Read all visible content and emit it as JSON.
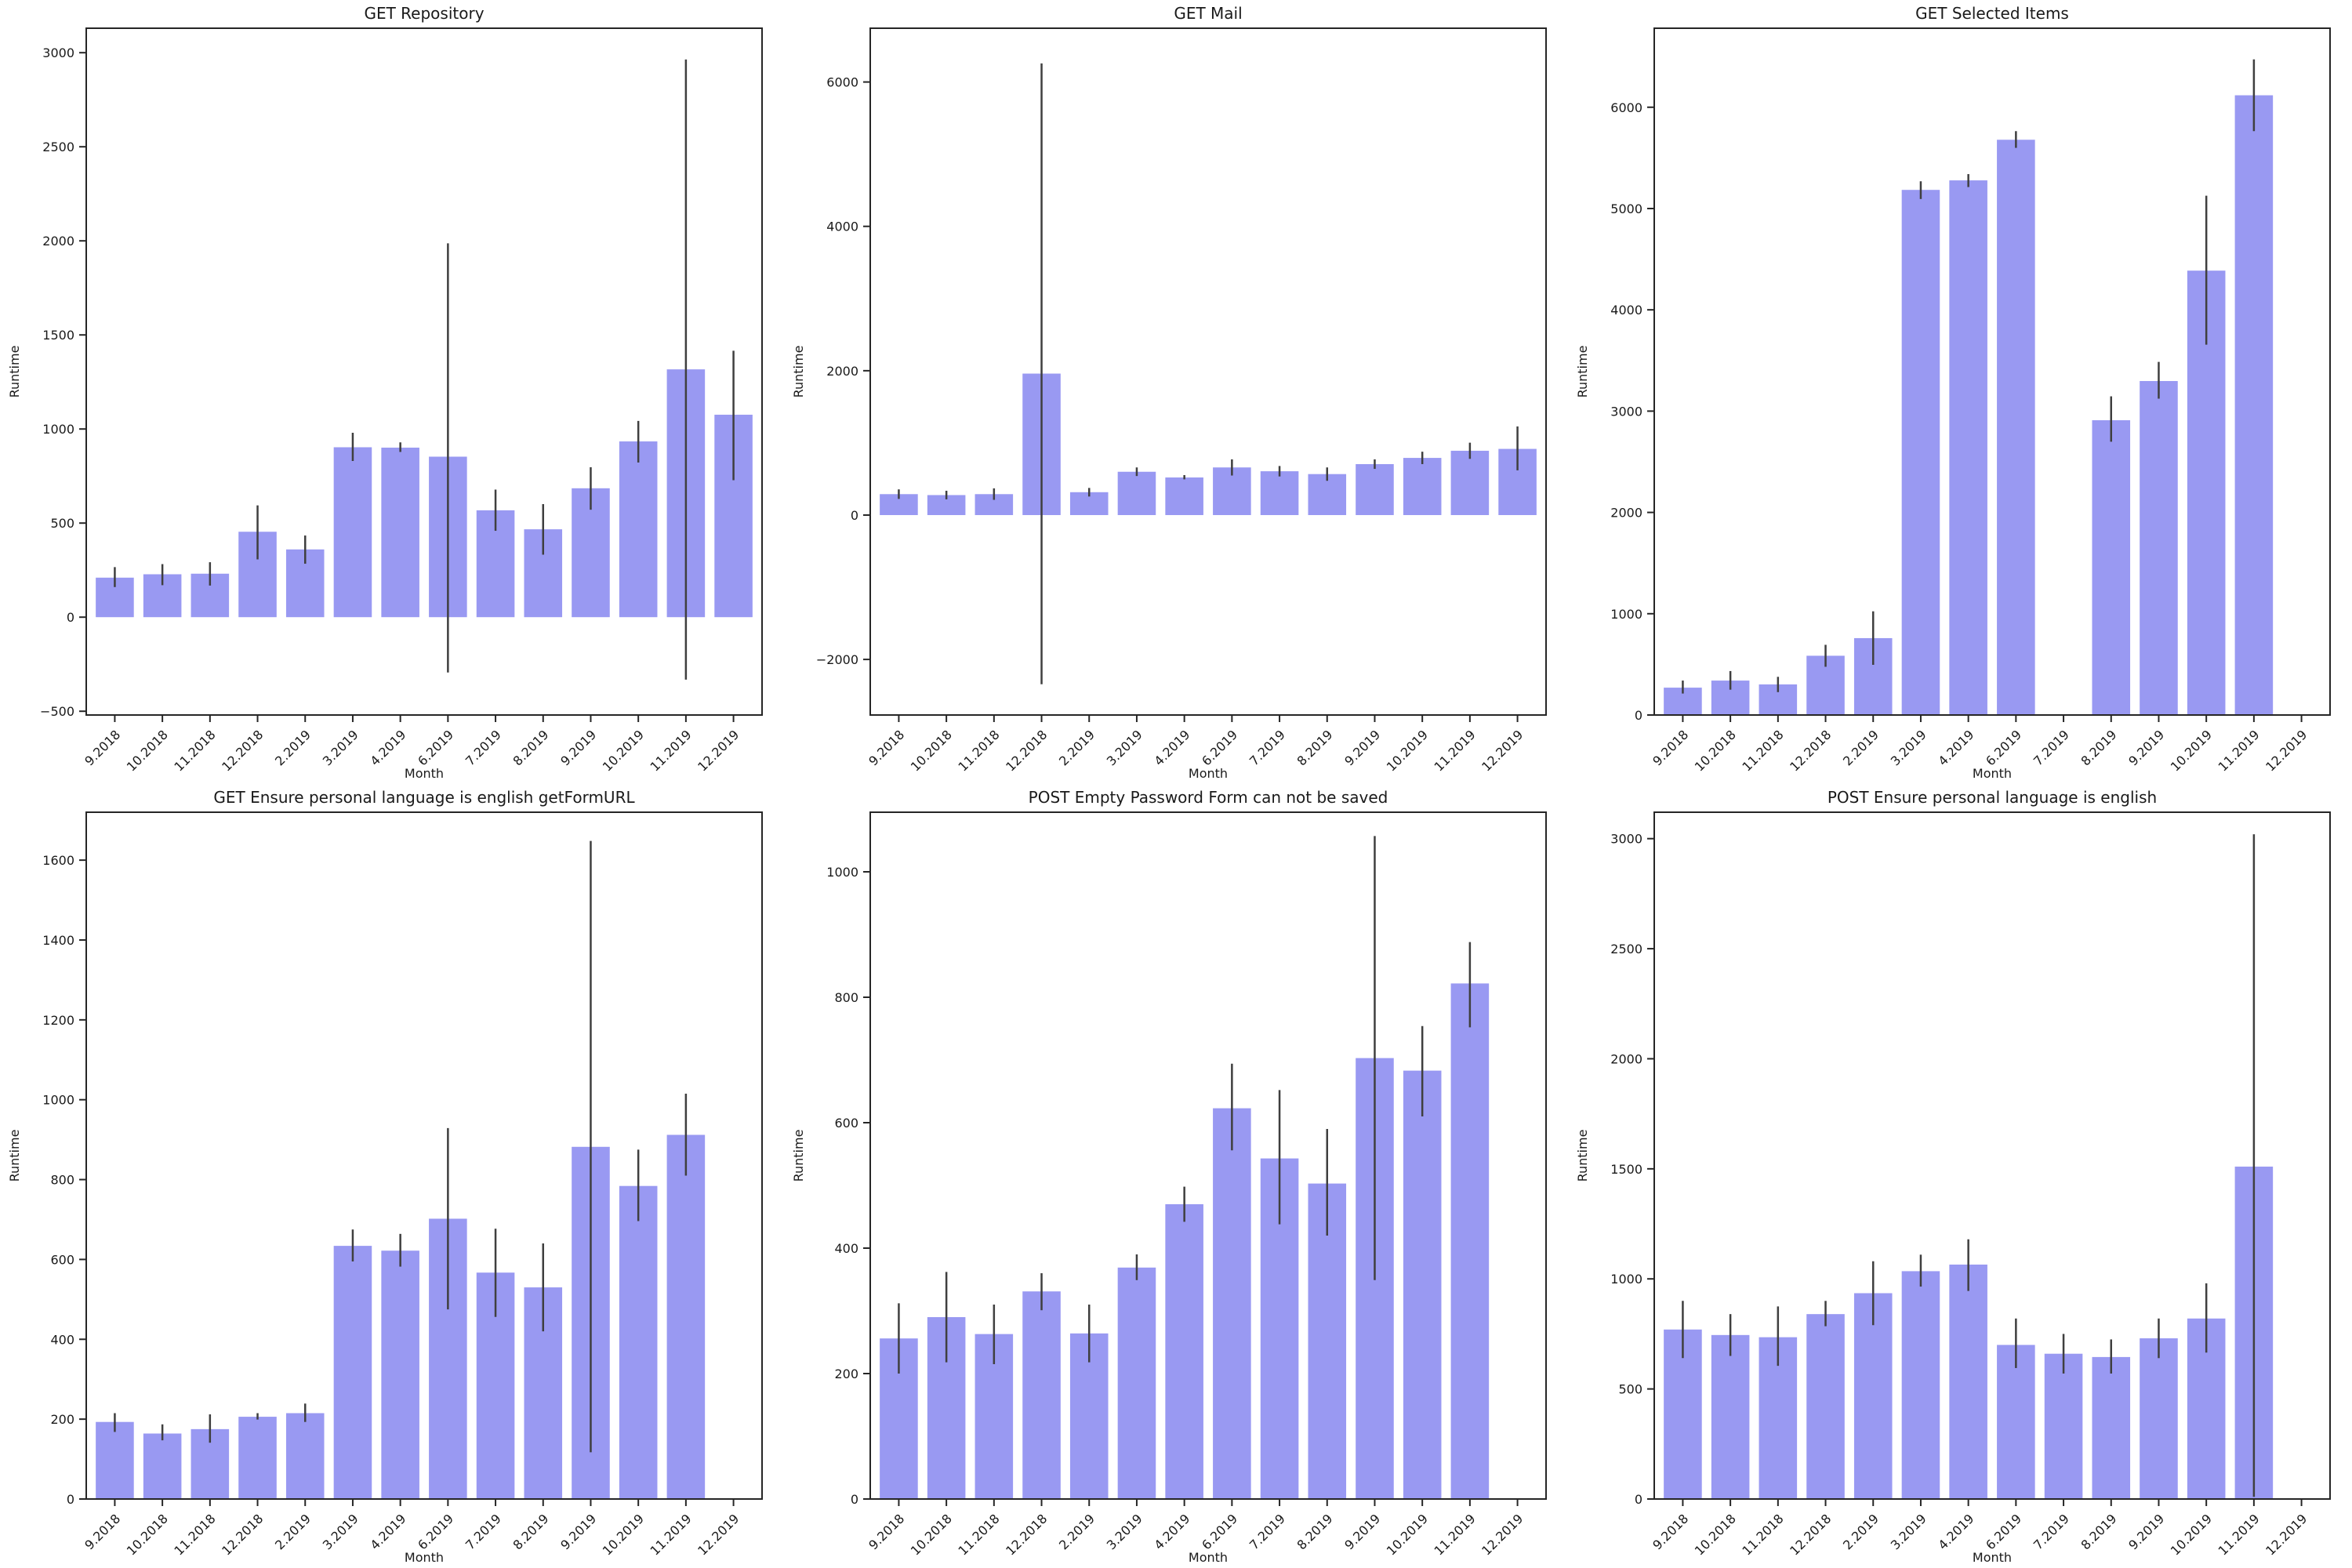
{
  "figure": {
    "background": "#ffffff",
    "bar_color": "#9999f2",
    "error_color": "#3f3f3f",
    "axis_color": "#262626",
    "text_color": "#1a1a1a"
  },
  "chart_data": [
    {
      "type": "bar",
      "title": "GET Repository",
      "xlabel": "Month",
      "ylabel": "Runtime",
      "categories": [
        "9.2018",
        "10.2018",
        "11.2018",
        "12.2018",
        "2.2019",
        "3.2019",
        "4.2019",
        "6.2019",
        "7.2019",
        "8.2019",
        "9.2019",
        "10.2019",
        "11.2019",
        "12.2019"
      ],
      "values": [
        210,
        228,
        231,
        454,
        360,
        903,
        901,
        853,
        568,
        467,
        685,
        934,
        1317,
        1076
      ],
      "error_low": [
        160,
        170,
        168,
        307,
        284,
        830,
        878,
        -294,
        459,
        332,
        571,
        822,
        -332,
        728
      ],
      "error_high": [
        266,
        282,
        292,
        594,
        434,
        980,
        929,
        1987,
        678,
        601,
        797,
        1043,
        2964,
        1416
      ],
      "yticks": [
        -500,
        0,
        500,
        1000,
        1500,
        2000,
        2500,
        3000
      ],
      "ylim": [
        -520,
        3130
      ],
      "grid": false,
      "legend": null
    },
    {
      "type": "bar",
      "title": "GET Mail",
      "xlabel": "Month",
      "ylabel": "Runtime",
      "categories": [
        "9.2018",
        "10.2018",
        "11.2018",
        "12.2018",
        "2.2019",
        "3.2019",
        "4.2019",
        "6.2019",
        "7.2019",
        "8.2019",
        "9.2019",
        "10.2019",
        "11.2019",
        "12.2019"
      ],
      "values": [
        290,
        277,
        290,
        1960,
        317,
        600,
        521,
        660,
        607,
        568,
        706,
        792,
        891,
        917
      ],
      "error_low": [
        224,
        218,
        211,
        -2343,
        257,
        541,
        495,
        548,
        535,
        475,
        640,
        706,
        779,
        620
      ],
      "error_high": [
        356,
        337,
        370,
        6257,
        376,
        660,
        554,
        772,
        680,
        660,
        772,
        878,
        1003,
        1228
      ],
      "yticks": [
        -2000,
        0,
        2000,
        4000,
        6000
      ],
      "ylim": [
        -2770,
        6745
      ],
      "grid": false,
      "legend": null
    },
    {
      "type": "bar",
      "title": "GET Selected Items",
      "xlabel": "Month",
      "ylabel": "Runtime",
      "categories": [
        "9.2018",
        "10.2018",
        "11.2018",
        "12.2018",
        "2.2019",
        "3.2019",
        "4.2019",
        "6.2019",
        "7.2019",
        "8.2019",
        "9.2019",
        "10.2019",
        "11.2019",
        "12.2019"
      ],
      "values": [
        270,
        340,
        302,
        585,
        759,
        5184,
        5278,
        5679,
        null,
        2910,
        3297,
        4387,
        6118,
        null
      ],
      "error_low": [
        212,
        250,
        226,
        476,
        495,
        5094,
        5212,
        5599,
        null,
        2698,
        3123,
        3656,
        5764,
        null
      ],
      "error_high": [
        340,
        434,
        377,
        693,
        1024,
        5269,
        5340,
        5764,
        null,
        3146,
        3486,
        5127,
        6472,
        null
      ],
      "yticks": [
        0,
        1000,
        2000,
        3000,
        4000,
        5000,
        6000
      ],
      "ylim": [
        0,
        6780
      ],
      "grid": false,
      "legend": null
    },
    {
      "type": "bar",
      "title": "GET Ensure personal language is english getFormURL",
      "xlabel": "Month",
      "ylabel": "Runtime",
      "categories": [
        "9.2018",
        "10.2018",
        "11.2018",
        "12.2018",
        "2.2019",
        "3.2019",
        "4.2019",
        "6.2019",
        "7.2019",
        "8.2019",
        "9.2019",
        "10.2019",
        "11.2019",
        "12.2019"
      ],
      "values": [
        193,
        164,
        175,
        206,
        215,
        634,
        622,
        702,
        567,
        530,
        882,
        784,
        912,
        null
      ],
      "error_low": [
        168,
        147,
        141,
        199,
        193,
        595,
        582,
        475,
        456,
        420,
        117,
        696,
        810,
        null
      ],
      "error_high": [
        215,
        187,
        212,
        215,
        239,
        675,
        664,
        929,
        677,
        640,
        1648,
        875,
        1015,
        null
      ],
      "yticks": [
        0,
        200,
        400,
        600,
        800,
        1000,
        1200,
        1400,
        1600
      ],
      "ylim": [
        0,
        1720
      ],
      "grid": false,
      "legend": null
    },
    {
      "type": "bar",
      "title": "POST Empty Password Form can not be saved",
      "xlabel": "Month",
      "ylabel": "Runtime",
      "categories": [
        "9.2018",
        "10.2018",
        "11.2018",
        "12.2018",
        "2.2019",
        "3.2019",
        "4.2019",
        "6.2019",
        "7.2019",
        "8.2019",
        "9.2019",
        "10.2019",
        "11.2019",
        "12.2019"
      ],
      "values": [
        256,
        290,
        263,
        331,
        264,
        369,
        470,
        623,
        543,
        503,
        703,
        683,
        822,
        null
      ],
      "error_low": [
        200,
        218,
        215,
        301,
        218,
        349,
        442,
        556,
        438,
        420,
        349,
        610,
        752,
        null
      ],
      "error_high": [
        312,
        362,
        310,
        360,
        310,
        390,
        498,
        694,
        652,
        590,
        1057,
        754,
        888,
        null
      ],
      "yticks": [
        0,
        200,
        400,
        600,
        800,
        1000
      ],
      "ylim": [
        0,
        1095
      ],
      "grid": false,
      "legend": null
    },
    {
      "type": "bar",
      "title": "POST Ensure personal language is english",
      "xlabel": "Month",
      "ylabel": "Runtime",
      "categories": [
        "9.2018",
        "10.2018",
        "11.2018",
        "12.2018",
        "2.2019",
        "3.2019",
        "4.2019",
        "6.2019",
        "7.2019",
        "8.2019",
        "9.2019",
        "10.2019",
        "11.2019",
        "12.2019"
      ],
      "values": [
        770,
        745,
        735,
        840,
        935,
        1035,
        1065,
        700,
        660,
        645,
        730,
        820,
        1510,
        null
      ],
      "error_low": [
        640,
        650,
        605,
        785,
        790,
        965,
        945,
        595,
        570,
        570,
        640,
        665,
        10,
        null
      ],
      "error_high": [
        900,
        840,
        875,
        900,
        1080,
        1110,
        1180,
        820,
        750,
        725,
        820,
        980,
        3020,
        null
      ],
      "yticks": [
        0,
        500,
        1000,
        1500,
        2000,
        2500,
        3000
      ],
      "ylim": [
        0,
        3120
      ],
      "grid": false,
      "legend": null
    }
  ]
}
